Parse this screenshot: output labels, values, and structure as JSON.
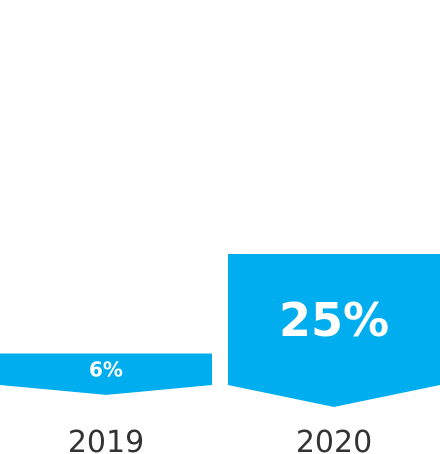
{
  "chart_data": {
    "type": "bar",
    "categories": [
      "2019",
      "2020"
    ],
    "values": [
      6,
      25
    ],
    "data_labels": [
      "6%",
      "25%"
    ],
    "title": "",
    "xlabel": "",
    "ylabel": "",
    "ylim": [
      0,
      25
    ],
    "grid": false,
    "legend": "none"
  },
  "colors": {
    "bar": "#00AEEF",
    "label_text": "#FFFFFF",
    "category_text": "#333333",
    "background": "#FFFFFF"
  }
}
